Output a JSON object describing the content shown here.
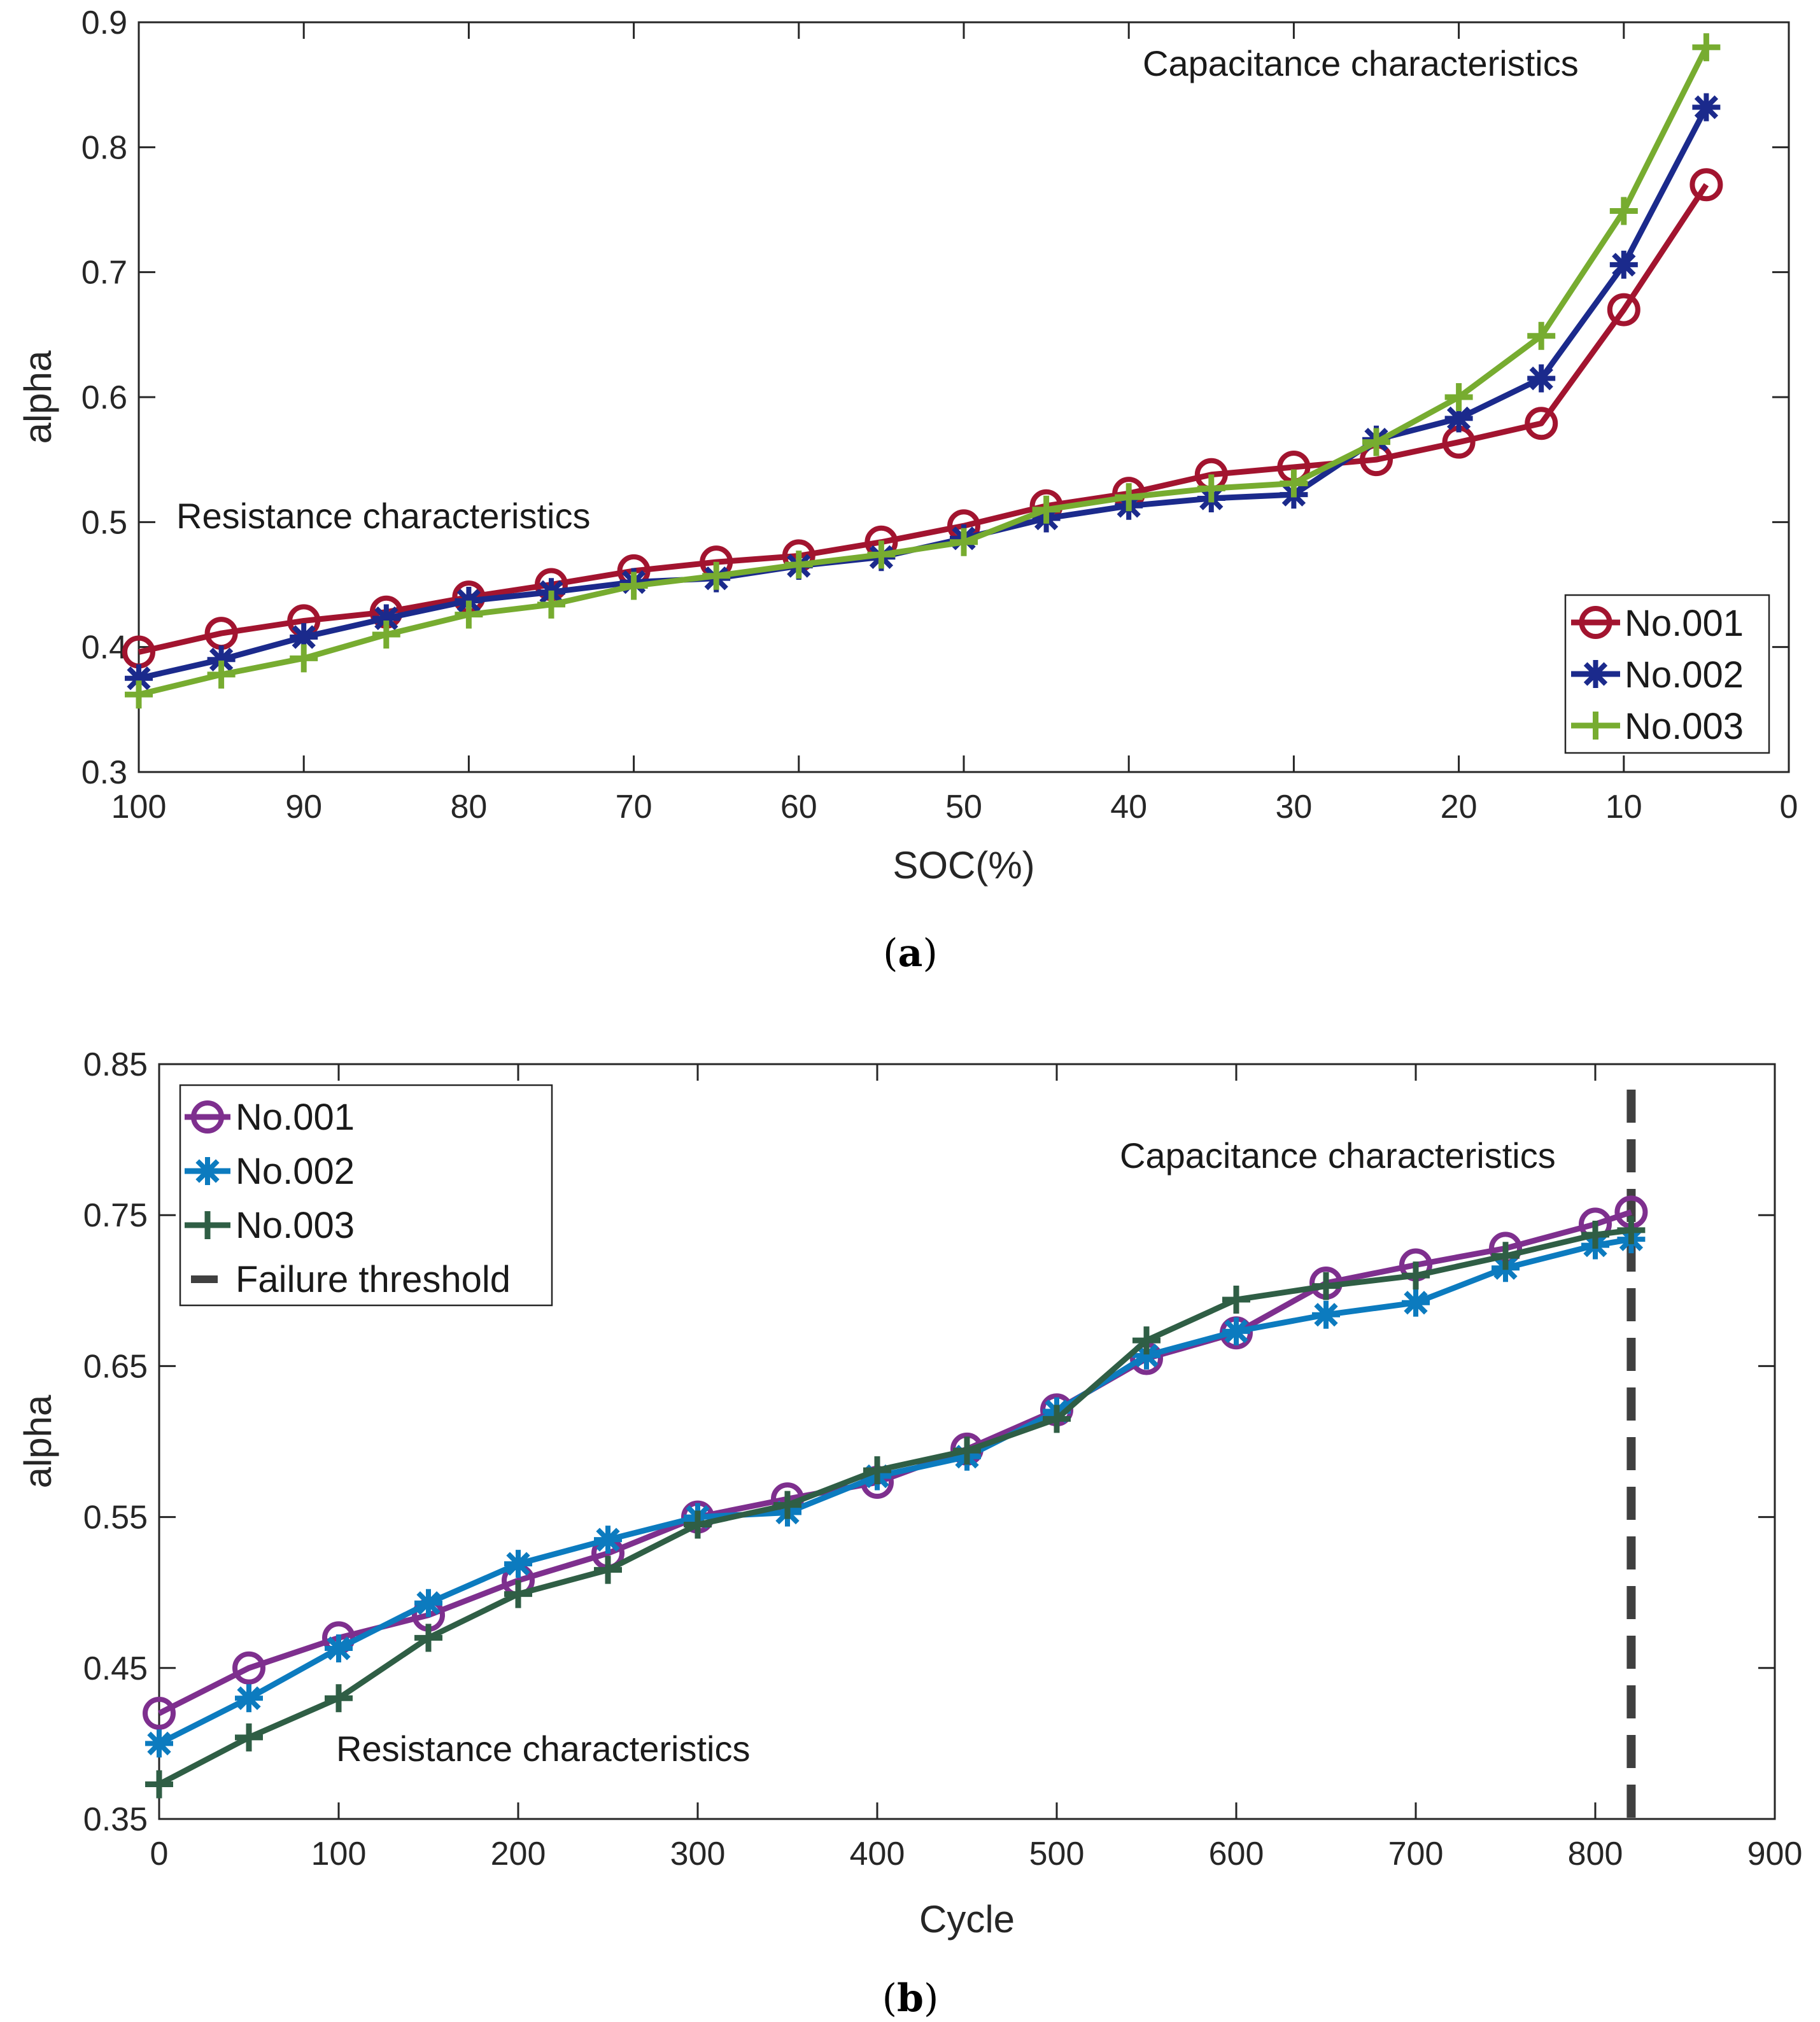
{
  "chart_data": [
    {
      "type": "line",
      "caption_letter": "a",
      "xlabel": "SOC(%)",
      "ylabel": "alpha",
      "xlim": [
        100,
        0
      ],
      "ylim": [
        0.3,
        0.9
      ],
      "xticks": [
        "100",
        "90",
        "80",
        "70",
        "60",
        "50",
        "40",
        "30",
        "20",
        "10",
        "0"
      ],
      "yticks": [
        "0.3",
        "0.4",
        "0.5",
        "0.6",
        "0.7",
        "0.8",
        "0.9"
      ],
      "x": [
        100,
        95,
        90,
        85,
        80,
        75,
        70,
        65,
        60,
        55,
        50,
        45,
        40,
        35,
        30,
        25,
        20,
        15,
        10,
        5
      ],
      "series": [
        {
          "name": "No.001",
          "marker": "circle",
          "color": "#A2142F",
          "values": [
            0.396,
            0.411,
            0.421,
            0.428,
            0.44,
            0.45,
            0.461,
            0.468,
            0.473,
            0.484,
            0.497,
            0.513,
            0.523,
            0.538,
            0.544,
            0.55,
            0.564,
            0.579,
            0.67,
            0.77
          ]
        },
        {
          "name": "No.002",
          "marker": "asterisk",
          "color": "#1B2A8C",
          "values": [
            0.375,
            0.39,
            0.408,
            0.423,
            0.437,
            0.444,
            0.452,
            0.455,
            0.465,
            0.472,
            0.487,
            0.503,
            0.513,
            0.519,
            0.522,
            0.566,
            0.583,
            0.615,
            0.706,
            0.832
          ]
        },
        {
          "name": "No.003",
          "marker": "plus",
          "color": "#77AC30",
          "values": [
            0.362,
            0.378,
            0.391,
            0.41,
            0.426,
            0.434,
            0.449,
            0.457,
            0.466,
            0.474,
            0.484,
            0.51,
            0.52,
            0.527,
            0.531,
            0.564,
            0.6,
            0.649,
            0.749,
            0.88
          ]
        }
      ],
      "annotations": [
        "Capacitance characteristics",
        "Resistance characteristics"
      ],
      "legend_position": "bottom-right"
    },
    {
      "type": "line",
      "caption_letter": "b",
      "xlabel": "Cycle",
      "ylabel": "alpha",
      "xlim": [
        0,
        900
      ],
      "ylim": [
        0.35,
        0.85
      ],
      "xticks": [
        "0",
        "100",
        "200",
        "300",
        "400",
        "500",
        "600",
        "700",
        "800",
        "900"
      ],
      "yticks": [
        "0.35",
        "0.45",
        "0.55",
        "0.65",
        "0.75",
        "0.85"
      ],
      "x": [
        0,
        50,
        100,
        150,
        200,
        250,
        300,
        350,
        400,
        450,
        500,
        550,
        600,
        650,
        700,
        750,
        800,
        820
      ],
      "series": [
        {
          "name": "No.001",
          "marker": "circle",
          "color": "#7E2F8E",
          "values": [
            0.42,
            0.45,
            0.47,
            0.485,
            0.508,
            0.526,
            0.55,
            0.562,
            0.573,
            0.595,
            0.621,
            0.655,
            0.672,
            0.705,
            0.717,
            0.728,
            0.744,
            0.752
          ]
        },
        {
          "name": "No.002",
          "marker": "asterisk",
          "color": "#0C7BBF",
          "values": [
            0.4,
            0.43,
            0.463,
            0.493,
            0.519,
            0.535,
            0.55,
            0.553,
            0.577,
            0.59,
            0.62,
            0.657,
            0.673,
            0.684,
            0.692,
            0.715,
            0.73,
            0.734
          ]
        },
        {
          "name": "No.003",
          "marker": "plus",
          "color": "#2F5E45",
          "values": [
            0.373,
            0.404,
            0.43,
            0.47,
            0.499,
            0.515,
            0.545,
            0.558,
            0.581,
            0.594,
            0.615,
            0.667,
            0.694,
            0.703,
            0.71,
            0.723,
            0.737,
            0.74
          ]
        }
      ],
      "threshold": {
        "name": "Failure threshold",
        "x": 820,
        "color": "#404040"
      },
      "annotations": [
        "Capacitance characteristics",
        "Resistance characteristics"
      ],
      "legend_position": "top-left"
    }
  ]
}
